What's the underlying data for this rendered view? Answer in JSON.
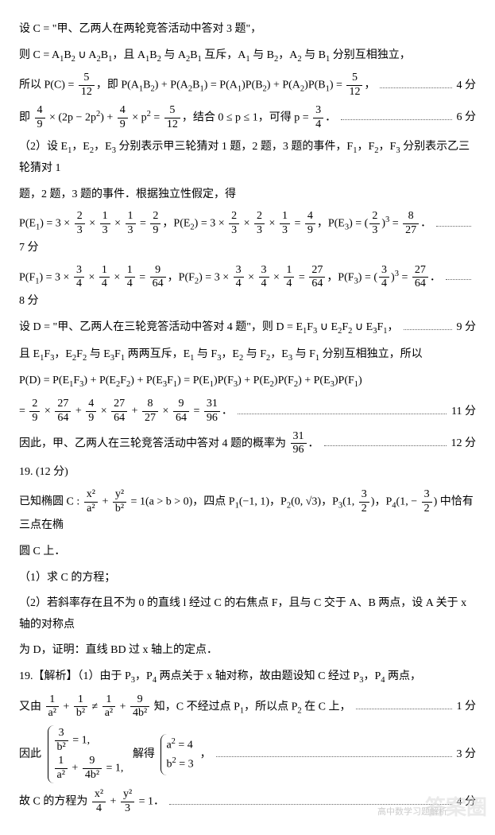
{
  "l1": "设 C = \"甲、乙两人在两轮竞答活动中答对 3 题\"，",
  "l2a": "则 C = A",
  "l2b": "B",
  "l2c": " ∪ A",
  "l2d": "B",
  "l2e": "，且 A",
  "l2f": "B",
  "l2g": " 与 A",
  "l2h": "B",
  "l2i": " 互斥，A",
  "l2j": " 与 B",
  "l2k": "，A",
  "l2l": " 与 B",
  "l2m": " 分别互相独立，",
  "l3a": "所以 P(C) = ",
  "l3b": "，即 P(A",
  "l3c": "B",
  "l3d": ") + P(A",
  "l3e": "B",
  "l3f": ") = P(A",
  "l3g": ")P(B",
  "l3h": ") + P(A",
  "l3i": ")P(B",
  "l3j": ") = ",
  "s4": "4 分",
  "l4a": "即 ",
  "l4b": " × (2p − 2p",
  "l4c": ") + ",
  "l4d": " × p",
  "l4e": " = ",
  "l4f": "，结合 0 ≤ p ≤ 1，可得 p = ",
  "l4g": "．",
  "s6": "6 分",
  "l5a": "（2）设 E",
  "l5b": "，E",
  "l5c": "，E",
  "l5d": " 分别表示甲三轮猜对 1 题，2 题，3 题的事件，F",
  "l5e": "，F",
  "l5f": "，F",
  "l5g": " 分别表示乙三轮猜对 1",
  "l6": "题，2 题，3 题的事件．根据独立性假定，得",
  "l7a": "P(E",
  "l7b": ") = 3 × ",
  "l7c": " × ",
  "l7d": " × ",
  "l7e": " = ",
  "l7f": "，P(E",
  "l7g": ") = 3 × ",
  "l7h": " × ",
  "l7i": " × ",
  "l7j": " = ",
  "l7k": "，P(E",
  "l7l": ") = ",
  "l7m": " = ",
  "l7n": "．",
  "s7": "7 分",
  "l8a": "P(F",
  "l8b": ") = 3 × ",
  "l8c": " × ",
  "l8d": " × ",
  "l8e": " = ",
  "l8f": "，P(F",
  "l8g": ") = 3 × ",
  "l8h": " × ",
  "l8i": " × ",
  "l8j": " = ",
  "l8k": "，P(F",
  "l8l": ") = ",
  "l8m": " = ",
  "l8n": "．",
  "s8": "8 分",
  "l9a": "设 D = \"甲、乙两人在三轮竞答活动中答对 4 题\"，则 D = E",
  "l9b": "F",
  "l9c": " ∪ E",
  "l9d": "F",
  "l9e": " ∪ E",
  "l9f": "F",
  "l9g": "，",
  "s9": "9 分",
  "l10a": "且 E",
  "l10b": "F",
  "l10c": "，E",
  "l10d": "F",
  "l10e": " 与 E",
  "l10f": "F",
  "l10g": " 两两互斥，E",
  "l10h": " 与 F",
  "l10i": "，E",
  "l10j": " 与 F",
  "l10k": "，E",
  "l10l": " 与 F",
  "l10m": " 分别互相独立，所以",
  "l11a": "P(D) = P(E",
  "l11b": "F",
  "l11c": ") + P(E",
  "l11d": "F",
  "l11e": ") + P(E",
  "l11f": "F",
  "l11g": ") = P(E",
  "l11h": ")P(F",
  "l11i": ") + P(E",
  "l11j": ")P(F",
  "l11k": ") + P(E",
  "l11l": ")P(F",
  "l11m": ")",
  "l12a": "= ",
  "l12b": " × ",
  "l12c": " + ",
  "l12d": " × ",
  "l12e": " + ",
  "l12f": " × ",
  "l12g": " = ",
  "l12h": "．",
  "s11": "11 分",
  "l13a": "因此，甲、乙两人在三轮竞答活动中答对 4 题的概率为 ",
  "l13b": "．",
  "s12": "12 分",
  "q19": "19.   (12 分)",
  "l14a": "已知椭圆 C : ",
  "l14b": " + ",
  "l14c": " = 1(a > b > 0)，四点 P",
  "l14d": "(−1, 1)，P",
  "l14e": "(0, √3)，P",
  "l14f": "，P",
  "l14g": " 中恰有三点在椭",
  "l15": "圆 C 上．",
  "l16": "（1）求 C 的方程；",
  "l17": "（2）若斜率存在且不为 0 的直线 l 经过 C 的右焦点 F，且与 C 交于 A、B 两点，设 A 关于 x 轴的对称点",
  "l18": "为 D，证明：直线 BD 过 x 轴上的定点．",
  "l19a": "19.【解析】（1）由于 P",
  "l19b": "，P",
  "l19c": " 两点关于 x 轴对称，故由题设知 C 经过 P",
  "l19d": "，P",
  "l19e": " 两点，",
  "l20a": "又由 ",
  "l20b": " + ",
  "l20c": " ≠ ",
  "l20d": " + ",
  "l20e": " 知，C 不经过点 P",
  "l20f": "，所以点 P",
  "l20g": " 在 C 上，",
  "s1": "1 分",
  "l21a": "因此 ",
  "l21b": "解得 ",
  "sysA1": " = 1,",
  "sysA2": " + ",
  "sysA3": " = 1,",
  "sysB1": "a",
  "sysB2": " = 4",
  "sysB3": "b",
  "sysB4": " = 3",
  "s3": "3 分",
  "l22a": "故 C 的方程为 ",
  "l22b": " + ",
  "l22c": " = 1．",
  "s4b": "4 分",
  "f_5_12n": "5",
  "f_5_12d": "12",
  "f_4_9n": "4",
  "f_4_9d": "9",
  "f_3_4n": "3",
  "f_3_4d": "4",
  "f_2_3n": "2",
  "f_2_3d": "3",
  "f_1_3n": "1",
  "f_1_3d": "3",
  "f_2_9n": "2",
  "f_2_9d": "9",
  "f_4_9bn": "4",
  "f_4_9bd": "9",
  "f_8_27n": "8",
  "f_8_27d": "27",
  "f_1_4n": "1",
  "f_1_4d": "4",
  "f_9_64n": "9",
  "f_9_64d": "64",
  "f_27_64n": "27",
  "f_27_64d": "64",
  "f_31_96n": "31",
  "f_31_96d": "96",
  "f_x2_a2n": "x²",
  "f_x2_a2d": "a²",
  "f_y2_b2n": "y²",
  "f_y2_b2d": "b²",
  "f_3_2n": "3",
  "f_3_2d": "2",
  "f_1_a2n": "1",
  "f_1_a2d": "a²",
  "f_1_b2n": "1",
  "f_1_b2d": "b²",
  "f_9_4b2n": "9",
  "f_9_4b2d": "4b²",
  "f_3_b2n": "3",
  "f_3_b2d": "b²",
  "f_x2_4n": "x²",
  "f_x2_4d": "4",
  "f_y2_3n": "y²",
  "f_y2_3d": "3",
  "p3pt": "1, ",
  "p4pt": "1, − ",
  "sq2": "2",
  "sq3": "3",
  "wm": "答案圈",
  "wm2": "高中数学习题解析"
}
